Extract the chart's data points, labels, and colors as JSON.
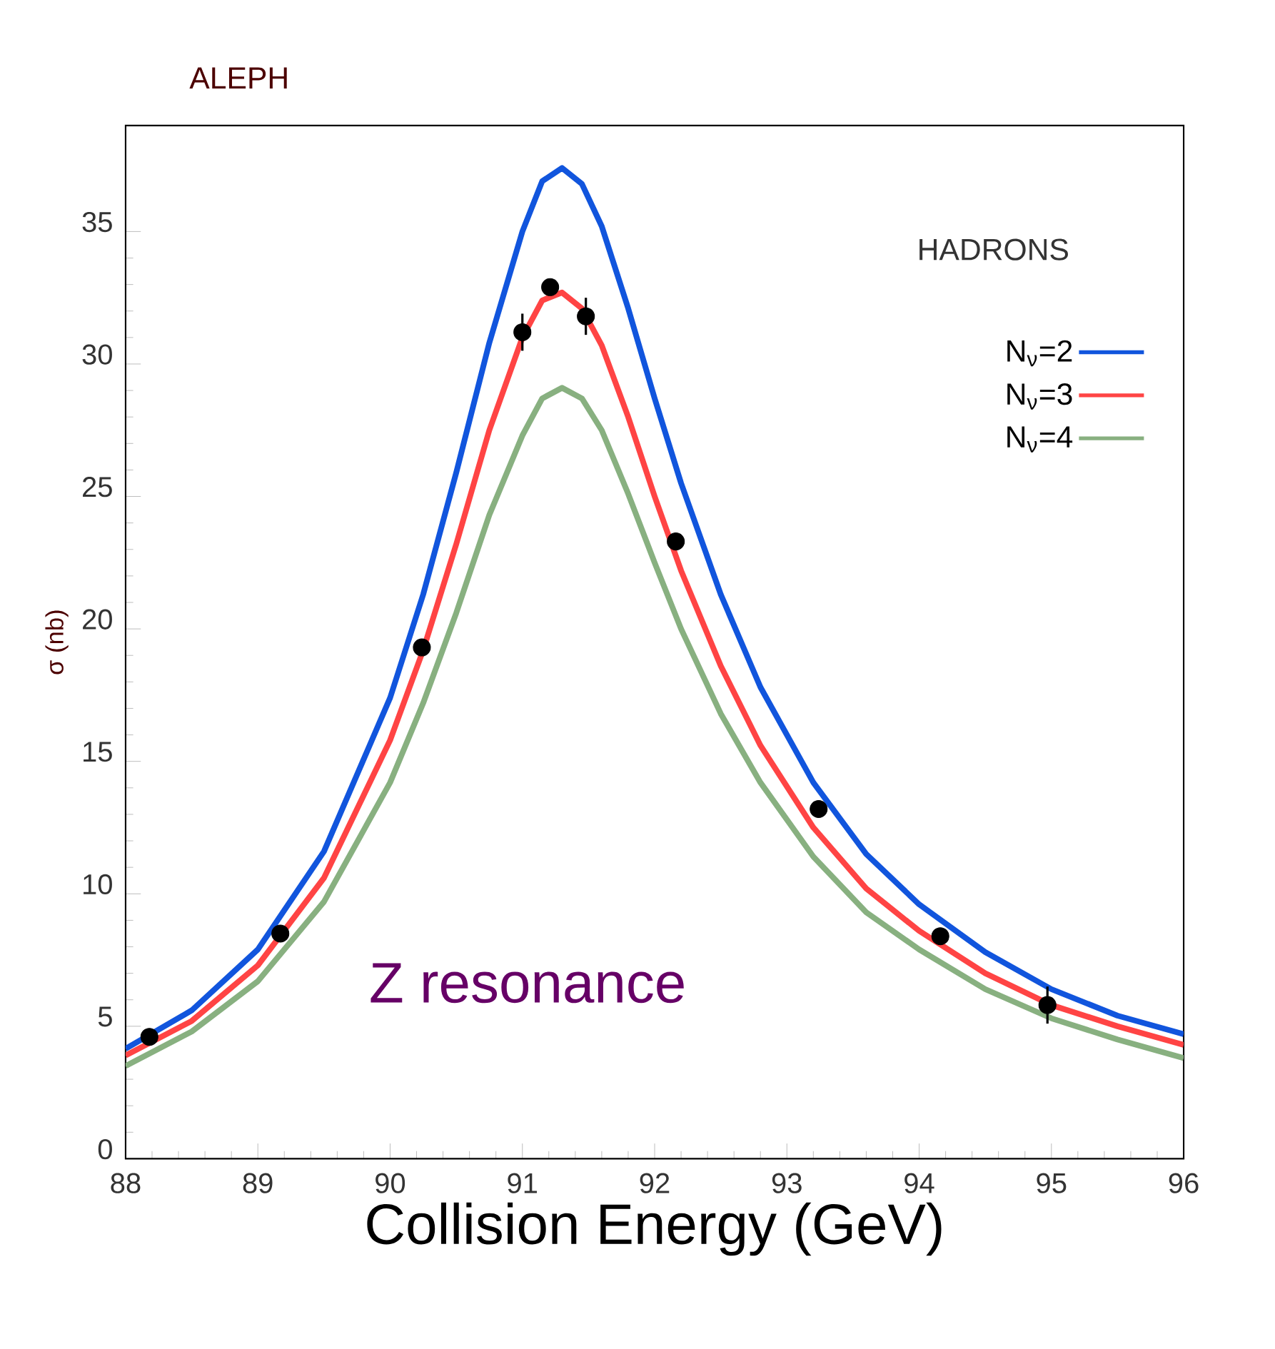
{
  "chart_data": {
    "type": "line",
    "title": "ALEPH",
    "xlabel": "Collision Energy (GeV)",
    "ylabel": "σ (nb)",
    "annotations": [
      "HADRONS",
      "Z resonance"
    ],
    "xlim": [
      88,
      96
    ],
    "ylim": [
      0,
      39
    ],
    "xticks": [
      88,
      89,
      90,
      91,
      92,
      93,
      94,
      95,
      96
    ],
    "yticks": [
      0,
      5,
      10,
      15,
      20,
      25,
      30,
      35
    ],
    "legend": "top right",
    "grid": false,
    "series": [
      {
        "name": "N$_{ν}$=2",
        "color": "#1155dd",
        "x": [
          88,
          88.5,
          89,
          89.5,
          90,
          90.25,
          90.5,
          90.75,
          91,
          91.15,
          91.3,
          91.45,
          91.6,
          91.8,
          92,
          92.2,
          92.5,
          92.8,
          93.2,
          93.6,
          94,
          94.5,
          95,
          95.5,
          96
        ],
        "values": [
          4.15,
          5.6,
          7.9,
          11.6,
          17.4,
          21.3,
          25.9,
          30.8,
          35.0,
          36.9,
          37.4,
          36.8,
          35.2,
          32.1,
          28.7,
          25.5,
          21.3,
          17.8,
          14.2,
          11.5,
          9.6,
          7.8,
          6.4,
          5.4,
          4.7
        ]
      },
      {
        "name": "N$_{ν}$=3",
        "color": "#ff4444",
        "x": [
          88,
          88.5,
          89,
          89.5,
          90,
          90.25,
          90.5,
          90.75,
          91,
          91.15,
          91.3,
          91.45,
          91.6,
          91.8,
          92,
          92.2,
          92.5,
          92.8,
          93.2,
          93.6,
          94,
          94.5,
          95,
          95.5,
          96
        ],
        "values": [
          3.9,
          5.2,
          7.3,
          10.6,
          15.8,
          19.2,
          23.2,
          27.5,
          31.0,
          32.4,
          32.7,
          32.1,
          30.7,
          28.0,
          25.0,
          22.2,
          18.6,
          15.6,
          12.5,
          10.2,
          8.6,
          7.0,
          5.8,
          5.0,
          4.3
        ]
      },
      {
        "name": "N$_{ν}$=4",
        "color": "#88b080",
        "x": [
          88,
          88.5,
          89,
          89.5,
          90,
          90.25,
          90.5,
          90.75,
          91,
          91.15,
          91.3,
          91.45,
          91.6,
          91.8,
          92,
          92.2,
          92.5,
          92.8,
          93.2,
          93.6,
          94,
          94.5,
          95,
          95.5,
          96
        ],
        "values": [
          3.5,
          4.8,
          6.7,
          9.7,
          14.2,
          17.2,
          20.6,
          24.3,
          27.3,
          28.7,
          29.1,
          28.7,
          27.5,
          25.1,
          22.5,
          20.0,
          16.8,
          14.2,
          11.4,
          9.3,
          7.9,
          6.4,
          5.3,
          4.5,
          3.8
        ]
      },
      {
        "type": "scatter",
        "marker": "circle",
        "color": "#000000",
        "x": [
          88.18,
          89.17,
          90.24,
          91.0,
          91.21,
          91.48,
          92.16,
          93.24,
          94.16,
          94.97
        ],
        "values": [
          4.6,
          8.5,
          19.3,
          31.2,
          32.9,
          31.8,
          23.3,
          13.2,
          8.4,
          5.8
        ],
        "errors": [
          null,
          null,
          null,
          0.7,
          null,
          0.7,
          null,
          null,
          null,
          0.7
        ]
      }
    ]
  }
}
